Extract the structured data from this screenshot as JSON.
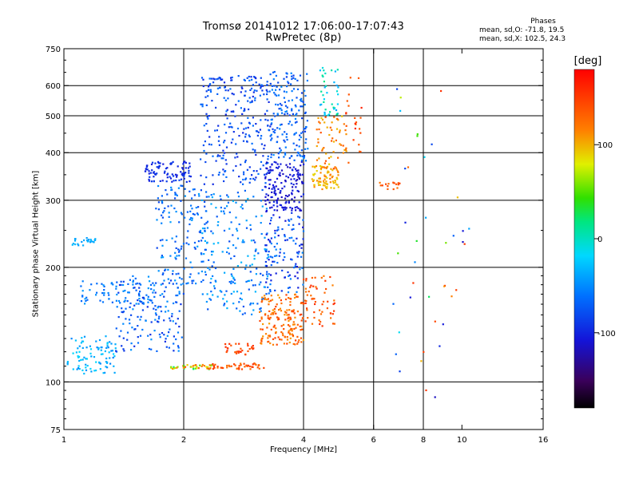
{
  "header": {
    "title_line1": "Tromsø 20141012 17:06:00-17:07:43",
    "title_line2": "RwPretec (8p)"
  },
  "stats": {
    "heading": "Phases",
    "line_o": "mean, sd,O: -71.8, 19.5",
    "line_x": "mean, sd,X: 102.5, 24.3"
  },
  "colorbar": {
    "unit": "[deg]",
    "tick_values": [
      100,
      0,
      -100
    ],
    "tick_labels": [
      "100",
      "0",
      "-100"
    ],
    "range": [
      -180,
      180
    ]
  },
  "chart_data": {
    "type": "scatter",
    "xlabel": "Frequency [MHz]",
    "ylabel": "Stationary phase Virtual Height [km]",
    "xscale": "log",
    "yscale": "log",
    "xlim": [
      1,
      16
    ],
    "ylim": [
      75,
      750
    ],
    "xticks": [
      1,
      2,
      4,
      6,
      8,
      10,
      16
    ],
    "xtick_labels": [
      "1",
      "2",
      "4",
      "6",
      "8",
      "10",
      "16"
    ],
    "x_gridlines": [
      2,
      4,
      6,
      8
    ],
    "yticks": [
      75,
      100,
      200,
      300,
      400,
      500,
      600,
      750
    ],
    "ytick_labels": [
      "75",
      "100",
      "200",
      "300",
      "400",
      "500",
      "600",
      "750"
    ],
    "y_gridlines": [
      100,
      200,
      300,
      400,
      500,
      600
    ],
    "color_variable": "phase [deg]",
    "clusters": [
      {
        "x": [
          1.02,
          1.35
        ],
        "y": [
          105,
          132
        ],
        "phase": [
          -55,
          -15
        ],
        "n": 90
      },
      {
        "x": [
          1.05,
          1.2
        ],
        "y": [
          228,
          240
        ],
        "phase": [
          -45,
          -30
        ],
        "n": 25
      },
      {
        "x": [
          1.1,
          1.7
        ],
        "y": [
          160,
          185
        ],
        "phase": [
          -70,
          -40
        ],
        "n": 70
      },
      {
        "x": [
          1.35,
          2.0
        ],
        "y": [
          120,
          190
        ],
        "phase": [
          -95,
          -45
        ],
        "n": 160
      },
      {
        "x": [
          1.6,
          2.1
        ],
        "y": [
          335,
          380
        ],
        "phase": [
          -105,
          -85
        ],
        "n": 90
      },
      {
        "x": [
          1.7,
          2.3
        ],
        "y": [
          180,
          330
        ],
        "phase": [
          -85,
          -40
        ],
        "n": 150
      },
      {
        "x": [
          1.85,
          2.4
        ],
        "y": [
          108,
          111
        ],
        "phase": [
          20,
          140
        ],
        "n": 40
      },
      {
        "x": [
          2.3,
          3.2
        ],
        "y": [
          108,
          112
        ],
        "phase": [
          120,
          160
        ],
        "n": 50
      },
      {
        "x": [
          2.2,
          3.3
        ],
        "y": [
          330,
          640
        ],
        "phase": [
          -100,
          -60
        ],
        "n": 260
      },
      {
        "x": [
          2.2,
          3.3
        ],
        "y": [
          150,
          320
        ],
        "phase": [
          -80,
          -30
        ],
        "n": 200
      },
      {
        "x": [
          2.5,
          3.0
        ],
        "y": [
          118,
          126
        ],
        "phase": [
          135,
          160
        ],
        "n": 30
      },
      {
        "x": [
          3.1,
          4.0
        ],
        "y": [
          125,
          170
        ],
        "phase": [
          105,
          150
        ],
        "n": 170
      },
      {
        "x": [
          3.2,
          4.0
        ],
        "y": [
          280,
          380
        ],
        "phase": [
          -120,
          -95
        ],
        "n": 160
      },
      {
        "x": [
          3.3,
          4.1
        ],
        "y": [
          380,
          660
        ],
        "phase": [
          -90,
          -50
        ],
        "n": 170
      },
      {
        "x": [
          3.2,
          4.0
        ],
        "y": [
          170,
          280
        ],
        "phase": [
          -110,
          -50
        ],
        "n": 120
      },
      {
        "x": [
          4.0,
          4.8
        ],
        "y": [
          140,
          190
        ],
        "phase": [
          115,
          160
        ],
        "n": 60
      },
      {
        "x": [
          4.2,
          4.9
        ],
        "y": [
          320,
          370
        ],
        "phase": [
          85,
          120
        ],
        "n": 80
      },
      {
        "x": [
          4.3,
          5.2
        ],
        "y": [
          360,
          500
        ],
        "phase": [
          90,
          140
        ],
        "n": 60
      },
      {
        "x": [
          4.4,
          4.9
        ],
        "y": [
          500,
          670
        ],
        "phase": [
          -40,
          20
        ],
        "n": 40
      },
      {
        "x": [
          5.0,
          5.6
        ],
        "y": [
          400,
          640
        ],
        "phase": [
          130,
          165
        ],
        "n": 20
      },
      {
        "x": [
          6.2,
          7.0
        ],
        "y": [
          320,
          335
        ],
        "phase": [
          120,
          150
        ],
        "n": 15
      },
      {
        "x": [
          6.5,
          10.5
        ],
        "y": [
          90,
          640
        ],
        "phase": [
          -120,
          160
        ],
        "n": 40
      }
    ]
  }
}
